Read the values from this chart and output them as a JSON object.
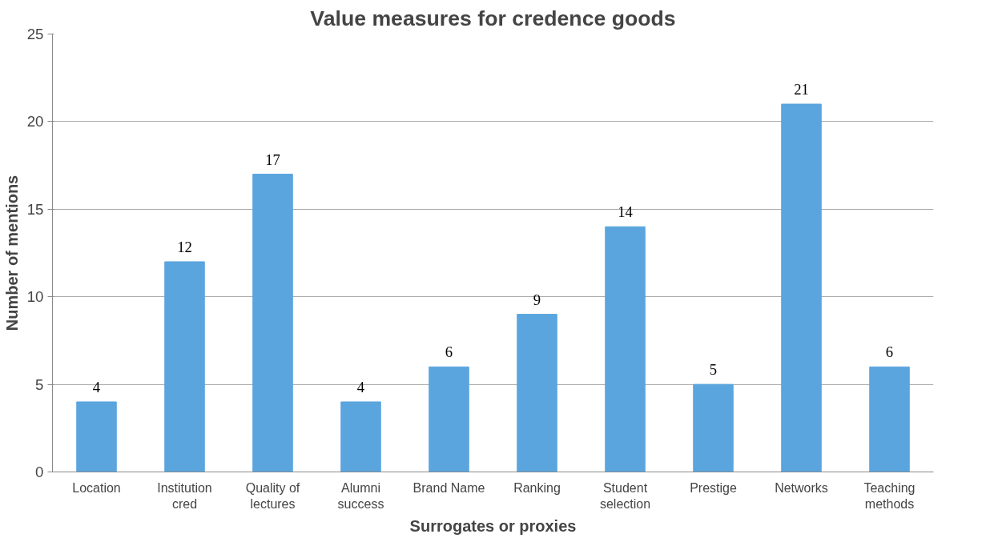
{
  "chart_data": {
    "type": "bar",
    "title": "Value measures for credence goods",
    "xlabel": "Surrogates or proxies",
    "ylabel": "Number of mentions",
    "categories": [
      "Location",
      "Institution cred",
      "Quality of lectures",
      "Alumni success",
      "Brand Name",
      "Ranking",
      "Student selection",
      "Prestige",
      "Networks",
      "Teaching methods"
    ],
    "values": [
      4,
      12,
      17,
      4,
      6,
      9,
      14,
      5,
      21,
      6
    ],
    "color": "#5aa5de",
    "ylim": [
      0,
      25
    ],
    "yticks": [
      0,
      5,
      10,
      15,
      20,
      25
    ],
    "grid": "y",
    "data_labels": true
  }
}
